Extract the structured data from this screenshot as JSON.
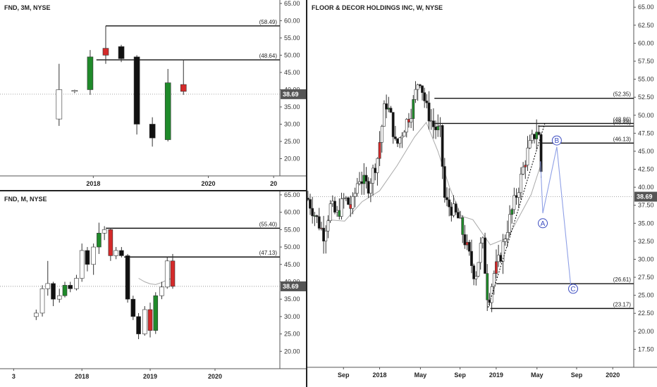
{
  "charts": [
    {
      "id": "p3m",
      "title": "FND, 3M, NYSE",
      "price_tag": "38.69",
      "y_ticks": [
        "65.00",
        "60.00",
        "55.00",
        "50.00",
        "45.00",
        "40.00",
        "35.00",
        "30.00",
        "25.00",
        "20.00"
      ],
      "x_ticks": [
        "2018",
        "2020",
        "20"
      ],
      "levels": [
        {
          "label": "(58.49)",
          "value": 58.49
        },
        {
          "label": "(48.64)",
          "value": 48.64
        }
      ]
    },
    {
      "id": "pm",
      "title": "FND, M, NYSE",
      "price_tag": "38.69",
      "y_ticks": [
        "65.00",
        "60.00",
        "55.00",
        "50.00",
        "45.00",
        "40.00",
        "35.00",
        "30.00",
        "25.00",
        "20.00"
      ],
      "x_ticks": [
        "3",
        "2018",
        "2019",
        "2020"
      ],
      "levels": [
        {
          "label": "(55.40)",
          "value": 55.4
        },
        {
          "label": "(47.13)",
          "value": 47.13
        }
      ]
    },
    {
      "id": "pw",
      "title": "FLOOR & DECOR HOLDINGS INC, W, NYSE",
      "price_tag": "38.69",
      "y_ticks": [
        "65.00",
        "62.50",
        "60.00",
        "57.50",
        "55.00",
        "52.50",
        "50.00",
        "47.50",
        "45.00",
        "42.50",
        "40.00",
        "37.50",
        "35.00",
        "32.50",
        "30.00",
        "27.50",
        "25.00",
        "22.50",
        "20.00",
        "17.50"
      ],
      "x_ticks": [
        "Sep",
        "2018",
        "May",
        "Sep",
        "2019",
        "May",
        "Sep",
        "2020"
      ],
      "levels": [
        {
          "label": "(52.35)",
          "value": 52.35
        },
        {
          "label": "(48.86)",
          "value": 48.86
        },
        {
          "label": "(48.48)",
          "value": 48.48
        },
        {
          "label": "(46.13)",
          "value": 46.13
        },
        {
          "label": "(26.61)",
          "value": 26.61
        },
        {
          "label": "(23.17)",
          "value": 23.17
        }
      ],
      "wave_labels": [
        "A",
        "B",
        "C"
      ]
    }
  ],
  "chart_data": [
    {
      "type": "candlestick",
      "title": "FND, 3M, NYSE",
      "last_price": 38.69,
      "ylim": [
        15,
        66
      ],
      "x_range": [
        2016.5,
        2021.0
      ],
      "candles": [
        {
          "x": 2017.45,
          "o": 31.5,
          "h": 47.5,
          "l": 29.5,
          "c": 40.0
        },
        {
          "x": 2017.7,
          "o": 39.5,
          "h": 40.0,
          "l": 39.0,
          "c": 39.8
        },
        {
          "x": 2017.95,
          "o": 40.0,
          "h": 51.5,
          "l": 38.5,
          "c": 49.5
        },
        {
          "x": 2018.2,
          "o": 50.0,
          "h": 58.5,
          "l": 47.5,
          "c": 52.0
        },
        {
          "x": 2018.45,
          "o": 52.5,
          "h": 53.0,
          "l": 48.0,
          "c": 49.0
        },
        {
          "x": 2018.7,
          "o": 49.5,
          "h": 50.0,
          "l": 27.0,
          "c": 30.0
        },
        {
          "x": 2018.95,
          "o": 30.0,
          "h": 32.0,
          "l": 23.5,
          "c": 26.0
        },
        {
          "x": 2019.2,
          "o": 25.5,
          "h": 46.0,
          "l": 25.0,
          "c": 42.0
        },
        {
          "x": 2019.45,
          "o": 41.5,
          "h": 48.7,
          "l": 38.5,
          "c": 39.5
        }
      ]
    },
    {
      "type": "candlestick",
      "title": "FND, M, NYSE",
      "last_price": 38.69,
      "ylim": [
        15,
        66
      ],
      "x_range": [
        2016.8,
        2020.9
      ],
      "candles": [
        {
          "x": 2017.33,
          "o": 30,
          "h": 32,
          "l": 29,
          "c": 31
        },
        {
          "x": 2017.42,
          "o": 31,
          "h": 39,
          "l": 30,
          "c": 38
        },
        {
          "x": 2017.5,
          "o": 38,
          "h": 46,
          "l": 36,
          "c": 39.5
        },
        {
          "x": 2017.58,
          "o": 39.5,
          "h": 40,
          "l": 33,
          "c": 35
        },
        {
          "x": 2017.67,
          "o": 35,
          "h": 38,
          "l": 34,
          "c": 36
        },
        {
          "x": 2017.75,
          "o": 36,
          "h": 40,
          "l": 35.5,
          "c": 39
        },
        {
          "x": 2017.83,
          "o": 39,
          "h": 40,
          "l": 37,
          "c": 38
        },
        {
          "x": 2017.92,
          "o": 38,
          "h": 42,
          "l": 37.5,
          "c": 41
        },
        {
          "x": 2018.0,
          "o": 41,
          "h": 51,
          "l": 40,
          "c": 49
        },
        {
          "x": 2018.08,
          "o": 49,
          "h": 50,
          "l": 43,
          "c": 45
        },
        {
          "x": 2018.17,
          "o": 45,
          "h": 51,
          "l": 42,
          "c": 50
        },
        {
          "x": 2018.25,
          "o": 50,
          "h": 57,
          "l": 48,
          "c": 54
        },
        {
          "x": 2018.33,
          "o": 54,
          "h": 56,
          "l": 52,
          "c": 55
        },
        {
          "x": 2018.42,
          "o": 55,
          "h": 55.5,
          "l": 46,
          "c": 47.5
        },
        {
          "x": 2018.5,
          "o": 47.5,
          "h": 50,
          "l": 46.5,
          "c": 49
        },
        {
          "x": 2018.58,
          "o": 49,
          "h": 50,
          "l": 47,
          "c": 47.5
        },
        {
          "x": 2018.67,
          "o": 47.5,
          "h": 48,
          "l": 34,
          "c": 35
        },
        {
          "x": 2018.75,
          "o": 35,
          "h": 36,
          "l": 29,
          "c": 30
        },
        {
          "x": 2018.83,
          "o": 30,
          "h": 31,
          "l": 23.5,
          "c": 25
        },
        {
          "x": 2018.92,
          "o": 25,
          "h": 33,
          "l": 24.5,
          "c": 32
        },
        {
          "x": 2019.0,
          "o": 32,
          "h": 34,
          "l": 24,
          "c": 26
        },
        {
          "x": 2019.08,
          "o": 26,
          "h": 37,
          "l": 25,
          "c": 36
        },
        {
          "x": 2019.17,
          "o": 36,
          "h": 40,
          "l": 35,
          "c": 38.5
        },
        {
          "x": 2019.25,
          "o": 38.5,
          "h": 47,
          "l": 38,
          "c": 46
        },
        {
          "x": 2019.33,
          "o": 46,
          "h": 48,
          "l": 38,
          "c": 38.69
        }
      ],
      "ma": [
        [
          2018.83,
          41
        ],
        [
          2018.92,
          40
        ],
        [
          2019.0,
          39.4
        ],
        [
          2019.08,
          39.2
        ],
        [
          2019.17,
          39.8
        ],
        [
          2019.25,
          40.6
        ],
        [
          2019.33,
          41
        ]
      ]
    },
    {
      "type": "candlestick",
      "title": "FLOOR & DECOR HOLDINGS INC, W, NYSE",
      "last_price": 38.69,
      "ylim": [
        15,
        66
      ],
      "x_range": [
        2017.38,
        2020.18
      ],
      "x_tick_positions": [
        2017.69,
        2018.0,
        2018.35,
        2018.69,
        2019.0,
        2019.35,
        2019.69,
        2020.0
      ],
      "candles": [],
      "ma": [
        [
          2017.55,
          35.5
        ],
        [
          2017.7,
          35.3
        ],
        [
          2017.85,
          38
        ],
        [
          2018.0,
          39.5
        ],
        [
          2018.15,
          43
        ],
        [
          2018.3,
          47
        ],
        [
          2018.4,
          49
        ],
        [
          2018.5,
          45
        ],
        [
          2018.6,
          40
        ],
        [
          2018.7,
          36
        ],
        [
          2018.8,
          35.5
        ],
        [
          2018.95,
          32
        ],
        [
          2019.1,
          33
        ],
        [
          2019.2,
          36
        ],
        [
          2019.3,
          39
        ],
        [
          2019.38,
          43
        ]
      ],
      "projection": [
        [
          2019.38,
          43.6
        ],
        [
          2019.4,
          36.4
        ],
        [
          2019.52,
          45.6
        ],
        [
          2019.64,
          26.3
        ]
      ],
      "uptrend": [
        [
          2018.93,
          23.3
        ],
        [
          2019.42,
          49.0
        ]
      ],
      "wave_points": [
        {
          "label": "A",
          "x": 2019.4,
          "y": 35.0
        },
        {
          "label": "B",
          "x": 2019.52,
          "y": 46.5
        },
        {
          "label": "C",
          "x": 2019.66,
          "y": 25.9
        }
      ]
    }
  ]
}
